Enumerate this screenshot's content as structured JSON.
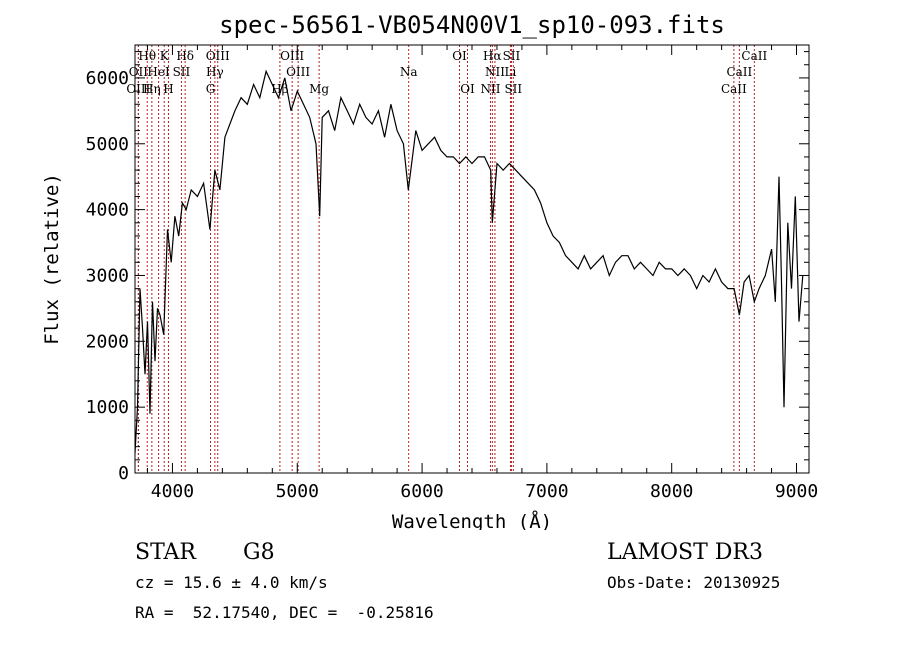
{
  "chart_data": {
    "type": "line",
    "title": "spec-56561-VB054N00V1_sp10-093.fits",
    "xlabel": "Wavelength (Å)",
    "ylabel": "Flux (relative)",
    "xlim": [
      3700,
      9100
    ],
    "ylim": [
      0,
      6500
    ],
    "xticks": [
      4000,
      5000,
      6000,
      7000,
      8000,
      9000
    ],
    "yticks": [
      0,
      1000,
      2000,
      3000,
      4000,
      5000,
      6000
    ],
    "series": [
      {
        "x": [
          3700,
          3720,
          3740,
          3760,
          3780,
          3800,
          3820,
          3840,
          3860,
          3880,
          3900,
          3930,
          3960,
          3990,
          4020,
          4050,
          4080,
          4110,
          4150,
          4200,
          4250,
          4300,
          4340,
          4380,
          4420,
          4460,
          4500,
          4550,
          4600,
          4650,
          4700,
          4750,
          4800,
          4850,
          4900,
          4950,
          5000,
          5050,
          5100,
          5150,
          5180,
          5200,
          5250,
          5300,
          5350,
          5400,
          5450,
          5500,
          5550,
          5600,
          5650,
          5700,
          5750,
          5800,
          5850,
          5890,
          5950,
          6000,
          6050,
          6100,
          6150,
          6200,
          6250,
          6300,
          6350,
          6400,
          6450,
          6500,
          6550,
          6563,
          6600,
          6650,
          6700,
          6750,
          6800,
          6850,
          6900,
          6950,
          7000,
          7050,
          7100,
          7150,
          7200,
          7250,
          7300,
          7350,
          7400,
          7450,
          7500,
          7550,
          7600,
          7650,
          7700,
          7750,
          7800,
          7850,
          7900,
          7950,
          8000,
          8050,
          8100,
          8150,
          8200,
          8250,
          8300,
          8350,
          8400,
          8450,
          8500,
          8542,
          8580,
          8620,
          8662,
          8700,
          8750,
          8800,
          8830,
          8860,
          8880,
          8900,
          8930,
          8960,
          8990,
          9020,
          9050
        ],
        "y": [
          300,
          1000,
          2800,
          2200,
          1500,
          2300,
          900,
          2600,
          1700,
          2500,
          2400,
          2100,
          3700,
          3200,
          3900,
          3600,
          4100,
          4000,
          4300,
          4200,
          4400,
          3700,
          4600,
          4300,
          5100,
          5300,
          5500,
          5700,
          5600,
          5900,
          5700,
          6100,
          5900,
          5700,
          6000,
          5500,
          5800,
          5600,
          5400,
          5000,
          3900,
          5400,
          5500,
          5200,
          5700,
          5500,
          5300,
          5600,
          5400,
          5300,
          5500,
          5100,
          5600,
          5200,
          5000,
          4300,
          5200,
          4900,
          5000,
          5100,
          4900,
          4800,
          4800,
          4700,
          4800,
          4700,
          4800,
          4800,
          4600,
          3800,
          4700,
          4600,
          4700,
          4600,
          4500,
          4400,
          4300,
          4100,
          3800,
          3600,
          3500,
          3300,
          3200,
          3100,
          3300,
          3100,
          3200,
          3300,
          3000,
          3200,
          3300,
          3300,
          3100,
          3200,
          3100,
          3000,
          3200,
          3100,
          3100,
          3000,
          3100,
          3000,
          2800,
          3000,
          2900,
          3100,
          2900,
          2800,
          2800,
          2400,
          2900,
          3000,
          2600,
          2800,
          3000,
          3400,
          2600,
          4500,
          2900,
          1000,
          3800,
          2800,
          4200,
          2300,
          3000
        ]
      }
    ],
    "lines": [
      {
        "name": "Hθ",
        "wl": 3798,
        "row": 0
      },
      {
        "name": "K",
        "wl": 3934,
        "row": 0
      },
      {
        "name": "Hδ",
        "wl": 4102,
        "row": 0
      },
      {
        "name": "OIII",
        "wl": 4363,
        "row": 0
      },
      {
        "name": "OIII",
        "wl": 4959,
        "row": 0
      },
      {
        "name": "OI",
        "wl": 6300,
        "row": 0
      },
      {
        "name": "Hα",
        "wl": 6563,
        "row": 0
      },
      {
        "name": "SII",
        "wl": 6716,
        "row": 0
      },
      {
        "name": "CaII",
        "wl": 8662,
        "row": 0
      },
      {
        "name": "OII",
        "wl": 3727,
        "row": 1
      },
      {
        "name": "HeI",
        "wl": 3889,
        "row": 1
      },
      {
        "name": "SII",
        "wl": 4072,
        "row": 1
      },
      {
        "name": "Hγ",
        "wl": 4340,
        "row": 1
      },
      {
        "name": "OIII",
        "wl": 5007,
        "row": 1
      },
      {
        "name": "Na",
        "wl": 5893,
        "row": 1
      },
      {
        "name": "NII",
        "wl": 6584,
        "row": 1
      },
      {
        "name": "Li",
        "wl": 6708,
        "row": 1
      },
      {
        "name": "CaII",
        "wl": 8542,
        "row": 1
      },
      {
        "name": "OIII",
        "wl": 3727,
        "row": 2
      },
      {
        "name": "Hη",
        "wl": 3835,
        "row": 2
      },
      {
        "name": "H",
        "wl": 3968,
        "row": 2
      },
      {
        "name": "G",
        "wl": 4305,
        "row": 2
      },
      {
        "name": "Hβ",
        "wl": 4861,
        "row": 2
      },
      {
        "name": "Mg",
        "wl": 5175,
        "row": 2
      },
      {
        "name": "OI",
        "wl": 6364,
        "row": 2
      },
      {
        "name": "NII",
        "wl": 6548,
        "row": 2
      },
      {
        "name": "SII",
        "wl": 6731,
        "row": 2
      },
      {
        "name": "CaII",
        "wl": 8498,
        "row": 2
      }
    ],
    "grid": false,
    "line_color": "#000000",
    "marker_color": "#b22222"
  },
  "info": {
    "object_class": "STAR",
    "subclass": "G8",
    "survey": "LAMOST DR3",
    "redshift": "cz = 15.6 ± 4.0 km/s",
    "obs_date": "Obs-Date: 20130925",
    "coords": "RA =  52.17540, DEC =  -0.25816"
  }
}
